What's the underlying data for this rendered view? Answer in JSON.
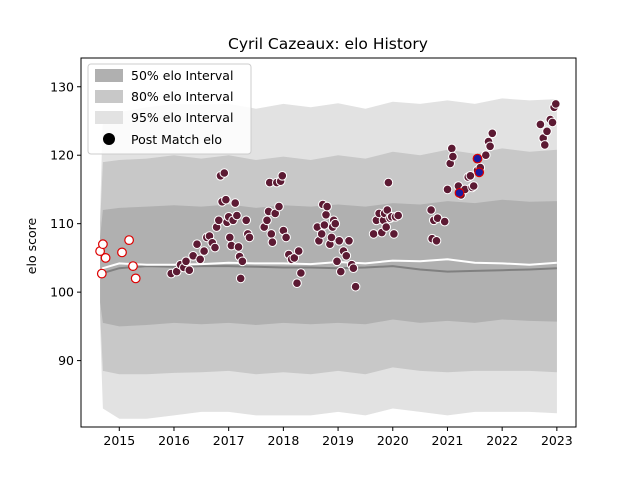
{
  "chart_data": {
    "type": "scatter",
    "title": "Cyril Cazeaux: elo History",
    "xlabel": "",
    "ylabel": "elo score",
    "xlim": [
      2014.3,
      2023.35
    ],
    "ylim": [
      80.3,
      134.2
    ],
    "x_ticks": [
      2015,
      2016,
      2017,
      2018,
      2019,
      2020,
      2021,
      2022,
      2023
    ],
    "y_ticks": [
      90,
      100,
      110,
      120,
      130
    ],
    "legend_position": "top-left",
    "legend": [
      {
        "label": "50% elo Interval",
        "color": "#b0b0b0"
      },
      {
        "label": "80% elo Interval",
        "color": "#c8c8c8"
      },
      {
        "label": "95% elo Interval",
        "color": "#e2e2e2"
      },
      {
        "label": "Post Match elo",
        "color": "#000000"
      }
    ],
    "colors": {
      "band95": "#e2e2e2",
      "band80": "#c8c8c8",
      "band50": "#b0b0b0",
      "median": "#808080",
      "mean": "#ffffff",
      "point_fill": "#5c1a33",
      "point_edge": "#ffffff",
      "early_edge": "#dd0000",
      "recent_fill": "#1a1aa0",
      "recent_edge": "#dd0000"
    },
    "bands": {
      "x": [
        2014.65,
        2014.7,
        2015.0,
        2015.5,
        2016.0,
        2016.5,
        2017.0,
        2017.5,
        2018.0,
        2018.5,
        2019.0,
        2019.5,
        2020.0,
        2020.5,
        2021.0,
        2021.5,
        2022.0,
        2022.5,
        2023.0
      ],
      "upper95": [
        111.5,
        126.0,
        126.3,
        127.0,
        127.5,
        127.4,
        127.5,
        126.8,
        127.5,
        127.0,
        127.6,
        126.8,
        127.8,
        127.5,
        128.0,
        127.5,
        128.3,
        128.0,
        128.2
      ],
      "lower95": [
        95.0,
        83.0,
        81.5,
        81.5,
        82.0,
        82.5,
        82.5,
        82.0,
        82.0,
        82.0,
        82.5,
        82.0,
        83.0,
        82.5,
        82.0,
        82.5,
        82.5,
        82.5,
        82.3
      ],
      "upper80": [
        110.0,
        119.0,
        119.3,
        119.5,
        120.0,
        119.5,
        120.0,
        119.3,
        119.8,
        119.3,
        120.0,
        119.5,
        120.5,
        120.0,
        120.8,
        120.2,
        121.0,
        120.5,
        120.8
      ],
      "lower80": [
        97.0,
        88.5,
        88.0,
        88.0,
        88.2,
        88.3,
        88.5,
        88.0,
        88.3,
        88.0,
        88.5,
        88.0,
        89.0,
        88.5,
        88.3,
        88.5,
        88.5,
        88.5,
        88.3
      ],
      "upper50": [
        108.0,
        112.0,
        112.3,
        112.5,
        112.7,
        112.5,
        112.8,
        112.3,
        112.7,
        112.5,
        112.8,
        112.5,
        113.0,
        112.8,
        113.3,
        113.0,
        113.5,
        113.2,
        113.3
      ],
      "lower50": [
        98.5,
        95.5,
        95.0,
        95.2,
        95.5,
        95.3,
        95.5,
        95.2,
        95.5,
        95.3,
        95.5,
        95.3,
        96.0,
        95.5,
        95.8,
        95.5,
        96.0,
        95.8,
        95.7
      ],
      "median": [
        102.0,
        102.8,
        103.5,
        103.8,
        103.7,
        103.8,
        103.8,
        103.7,
        103.6,
        103.6,
        103.5,
        103.6,
        103.8,
        103.3,
        103.0,
        103.1,
        103.2,
        103.3,
        103.5
      ],
      "mean": [
        102.0,
        103.5,
        104.2,
        104.0,
        104.0,
        104.1,
        104.3,
        104.2,
        104.2,
        104.1,
        104.4,
        104.2,
        104.6,
        104.5,
        104.8,
        104.3,
        104.2,
        104.0,
        104.3
      ]
    },
    "early_points": {
      "x": [
        2014.65,
        2014.7,
        2014.75,
        2014.68,
        2015.05,
        2015.18,
        2015.25,
        2015.3
      ],
      "y": [
        106.0,
        107.0,
        105.0,
        102.7,
        105.8,
        107.6,
        103.8,
        102.0
      ]
    },
    "points": {
      "x": [
        2015.95,
        2016.05,
        2016.12,
        2016.18,
        2016.22,
        2016.28,
        2016.35,
        2016.42,
        2016.48,
        2016.55,
        2016.6,
        2016.65,
        2016.7,
        2016.75,
        2016.78,
        2016.82,
        2016.85,
        2016.88,
        2016.92,
        2016.95,
        2016.97,
        2017.0,
        2017.02,
        2017.05,
        2017.08,
        2017.12,
        2017.15,
        2017.18,
        2017.2,
        2017.22,
        2017.25,
        2017.32,
        2017.35,
        2017.38,
        2017.65,
        2017.7,
        2017.73,
        2017.75,
        2017.78,
        2017.8,
        2017.85,
        2017.88,
        2017.92,
        2017.95,
        2017.98,
        2018.0,
        2018.05,
        2018.1,
        2018.15,
        2018.2,
        2018.25,
        2018.28,
        2018.32,
        2018.62,
        2018.65,
        2018.7,
        2018.72,
        2018.75,
        2018.78,
        2018.8,
        2018.85,
        2018.88,
        2018.9,
        2018.92,
        2018.95,
        2018.98,
        2019.02,
        2019.05,
        2019.1,
        2019.15,
        2019.2,
        2019.25,
        2019.28,
        2019.32,
        2019.65,
        2019.7,
        2019.75,
        2019.8,
        2019.83,
        2019.85,
        2019.88,
        2019.9,
        2019.92,
        2019.95,
        2019.98,
        2020.02,
        2020.05,
        2020.1,
        2020.7,
        2020.72,
        2020.75,
        2020.8,
        2020.82,
        2020.95,
        2021.0,
        2021.05,
        2021.08,
        2021.1,
        2021.2,
        2021.25,
        2021.32,
        2021.38,
        2021.42,
        2021.45,
        2021.48,
        2021.55,
        2021.6,
        2021.7,
        2021.75,
        2021.78,
        2021.82,
        2022.7,
        2022.75,
        2022.78,
        2022.82,
        2022.88,
        2022.92,
        2022.95,
        2022.98
      ],
      "y": [
        102.7,
        103.0,
        104.0,
        103.6,
        104.5,
        103.2,
        105.3,
        107.0,
        104.8,
        106.0,
        108.0,
        108.2,
        107.2,
        106.5,
        109.5,
        110.5,
        117.0,
        113.2,
        117.4,
        113.5,
        110.2,
        111.0,
        108.0,
        106.8,
        110.5,
        113.0,
        111.2,
        106.6,
        105.2,
        102.0,
        104.5,
        110.5,
        108.5,
        108.0,
        109.5,
        110.5,
        111.8,
        116.0,
        108.5,
        107.3,
        111.5,
        116.0,
        112.5,
        116.2,
        117.0,
        109.0,
        108.0,
        105.5,
        104.8,
        105.0,
        101.3,
        106.0,
        102.8,
        109.5,
        107.5,
        108.5,
        112.8,
        109.8,
        111.3,
        112.5,
        107.0,
        108.0,
        109.5,
        110.5,
        110.0,
        104.5,
        107.5,
        103.0,
        106.0,
        105.3,
        107.5,
        104.0,
        103.5,
        100.8,
        108.5,
        110.5,
        111.5,
        108.7,
        110.5,
        111.5,
        109.5,
        112.0,
        116.0,
        110.8,
        111.0,
        108.5,
        111.0,
        111.2,
        112.0,
        107.8,
        110.5,
        107.5,
        110.8,
        110.3,
        115.0,
        118.8,
        121.0,
        119.8,
        115.5,
        114.2,
        115.0,
        116.8,
        117.0,
        115.3,
        115.5,
        117.8,
        118.2,
        120.0,
        122.0,
        121.3,
        123.2,
        124.5,
        122.5,
        121.5,
        123.5,
        125.2,
        124.8,
        127.0,
        127.5
      ]
    },
    "recent_points": {
      "x": [
        2021.22,
        2021.55,
        2021.58
      ],
      "y": [
        114.5,
        119.5,
        117.5
      ]
    }
  }
}
